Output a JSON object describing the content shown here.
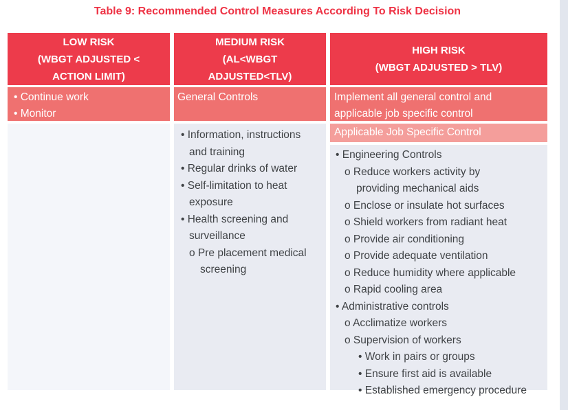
{
  "title": "Table 9: Recommended Control Measures According To Risk Decision",
  "colors": {
    "title_red": "#ee3345",
    "header_red": "#ed3b4b",
    "salmon": "#ef7170",
    "applicable_salmon": "#f49e9b",
    "body_light": "#f4f6fa",
    "body_gray": "#e9ebf2",
    "band_gray": "#e2e6ee",
    "body_text": "#3f4245"
  },
  "table": {
    "columns": [
      {
        "id": "low-risk",
        "header_lines": [
          "LOW RISK",
          "(WBGT ADJUSTED <",
          "ACTION LIMIT)"
        ],
        "summary_lines": [
          "• Continue work",
          "• Monitor"
        ],
        "body_lines": []
      },
      {
        "id": "medium-risk",
        "header_lines": [
          "MEDIUM RISK",
          "(AL<WBGT",
          "ADJUSTED<TLV)"
        ],
        "summary_lines": [
          "General Controls"
        ],
        "body_lines": [
          "• Information, instructions",
          "and training",
          "• Regular drinks of water",
          "• Self-limitation to heat",
          "exposure",
          "• Health screening and",
          "surveillance",
          "o Pre placement medical",
          "screening"
        ]
      },
      {
        "id": "high-risk",
        "header_lines": [
          "HIGH RISK",
          "(WBGT ADJUSTED > TLV)"
        ],
        "summary_lines": [
          "Implement all general control and",
          "applicable job specific control"
        ],
        "sub_header": "Applicable Job Specific Control",
        "body_lines": [
          "• Engineering Controls",
          "o Reduce workers activity by",
          "providing mechanical aids",
          "o Enclose or insulate hot surfaces",
          "o Shield workers from radiant heat",
          "o Provide air conditioning",
          "o Provide adequate ventilation",
          "o Reduce humidity where applicable",
          "o Rapid cooling area",
          "• Administrative controls",
          "o Acclimatize workers",
          "o Supervision of workers",
          "• Work in pairs or groups",
          "• Ensure first aid is available",
          "• Established emergency procedure"
        ]
      }
    ]
  }
}
